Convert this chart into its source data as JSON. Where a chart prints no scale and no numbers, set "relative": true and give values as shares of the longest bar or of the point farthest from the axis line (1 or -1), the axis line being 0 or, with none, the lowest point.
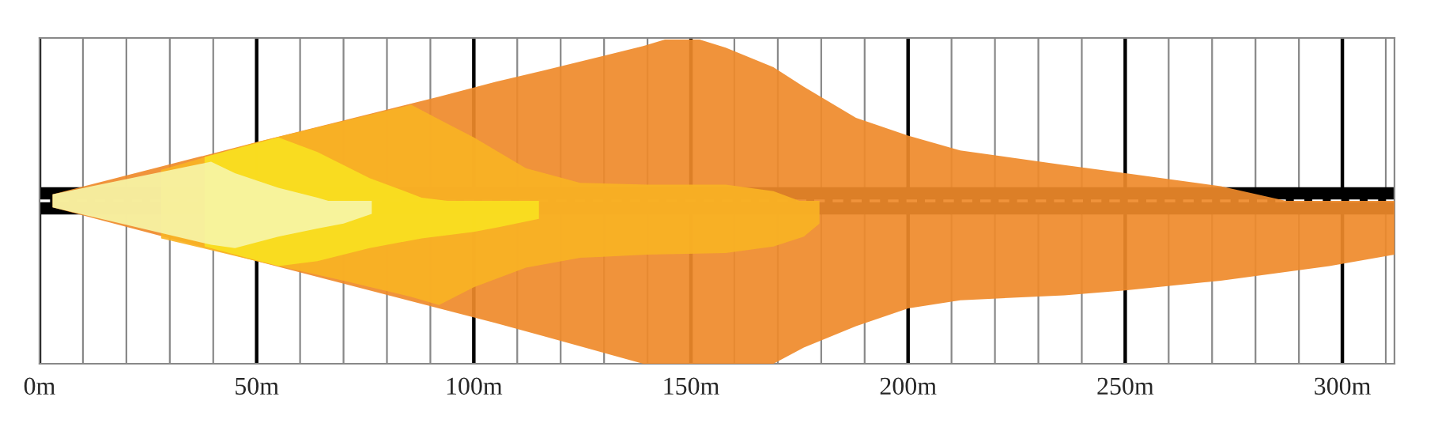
{
  "chart_data": {
    "type": "area",
    "relative": true,
    "xlim": [
      0,
      312
    ],
    "xticks": [
      {
        "value": 0,
        "label": "0m"
      },
      {
        "value": 10,
        "label": null
      },
      {
        "value": 20,
        "label": null
      },
      {
        "value": 30,
        "label": null
      },
      {
        "value": 40,
        "label": null
      },
      {
        "value": 50,
        "label": "50m"
      },
      {
        "value": 60,
        "label": null
      },
      {
        "value": 70,
        "label": null
      },
      {
        "value": 80,
        "label": null
      },
      {
        "value": 90,
        "label": null
      },
      {
        "value": 100,
        "label": "100m"
      },
      {
        "value": 110,
        "label": null
      },
      {
        "value": 120,
        "label": null
      },
      {
        "value": 130,
        "label": null
      },
      {
        "value": 140,
        "label": null
      },
      {
        "value": 150,
        "label": "150m"
      },
      {
        "value": 160,
        "label": null
      },
      {
        "value": 170,
        "label": null
      },
      {
        "value": 180,
        "label": null
      },
      {
        "value": 190,
        "label": null
      },
      {
        "value": 200,
        "label": "200m"
      },
      {
        "value": 210,
        "label": null
      },
      {
        "value": 220,
        "label": null
      },
      {
        "value": 230,
        "label": null
      },
      {
        "value": 240,
        "label": null
      },
      {
        "value": 250,
        "label": "250m"
      },
      {
        "value": 260,
        "label": null
      },
      {
        "value": 270,
        "label": null
      },
      {
        "value": 280,
        "label": null
      },
      {
        "value": 290,
        "label": null
      },
      {
        "value": 300,
        "label": "300m"
      },
      {
        "value": 310,
        "label": null
      }
    ],
    "grid": "x",
    "ref_lines": [
      {
        "axis": "y",
        "value": 0,
        "color": "#000000",
        "line_style": "solid"
      },
      {
        "axis": "y",
        "value": 0,
        "color": "#ffffff",
        "line_style": "dashed"
      }
    ],
    "series": [
      {
        "color": "#ef8a2a",
        "x": [
          3,
          50,
          92,
          105,
          116,
          139,
          144,
          152,
          158,
          169,
          176,
          188,
          200,
          212,
          236,
          250,
          272,
          287
        ],
        "values": [
          0.04,
          0.36,
          0.64,
          0.73,
          0.8,
          0.95,
          0.99,
          0.99,
          0.94,
          0.82,
          0.7,
          0.51,
          0.4,
          0.31,
          0.22,
          0.17,
          0.09,
          0
        ]
      },
      {
        "color": "#ef8a2a",
        "x": [
          3,
          50,
          92,
          105,
          116,
          139,
          144,
          152,
          158,
          169,
          176,
          188,
          200,
          212,
          236,
          250,
          272,
          297,
          312
        ],
        "values": [
          -0.04,
          -0.37,
          -0.66,
          -0.75,
          -0.83,
          -1,
          -1,
          -1,
          -1,
          -1,
          -0.9,
          -0.77,
          -0.66,
          -0.61,
          -0.58,
          -0.55,
          -0.49,
          -0.4,
          -0.33
        ]
      },
      {
        "color": "#f9b224",
        "x": [
          28,
          50,
          70,
          85.6,
          92,
          100,
          112,
          124.5,
          140,
          158,
          169,
          175
        ],
        "values": [
          0.19,
          0.36,
          0.49,
          0.59,
          0.5,
          0.39,
          0.2,
          0.11,
          0.1,
          0.1,
          0.06,
          0
        ]
      },
      {
        "color": "#f9b224",
        "x": [
          28,
          50,
          70,
          85.6,
          92,
          100,
          112,
          124.5,
          140,
          158,
          169,
          176,
          179.6
        ],
        "values": [
          -0.23,
          -0.37,
          -0.49,
          -0.59,
          -0.64,
          -0.53,
          -0.41,
          -0.35,
          -0.33,
          -0.32,
          -0.28,
          -0.22,
          -0.14
        ]
      },
      {
        "color": "#f8e020",
        "x": [
          38,
          55,
          64,
          76,
          88,
          94
        ],
        "values": [
          0.27,
          0.39,
          0.3,
          0.14,
          0.02,
          0
        ]
      },
      {
        "color": "#f8e020",
        "x": [
          38,
          55,
          64,
          76,
          88,
          100,
          106,
          115
        ],
        "values": [
          -0.28,
          -0.4,
          -0.37,
          -0.29,
          -0.23,
          -0.19,
          -0.16,
          -0.11
        ]
      },
      {
        "color": "#f6f4a6",
        "x": [
          3,
          39.5,
          45,
          55,
          64,
          66.5
        ],
        "values": [
          0.04,
          0.24,
          0.17,
          0.08,
          0.02,
          0
        ]
      },
      {
        "color": "#f6f4a6",
        "x": [
          3,
          39.5,
          45,
          55,
          64,
          70,
          76.5
        ],
        "values": [
          -0.04,
          -0.27,
          -0.29,
          -0.22,
          -0.17,
          -0.14,
          -0.08
        ]
      }
    ]
  }
}
